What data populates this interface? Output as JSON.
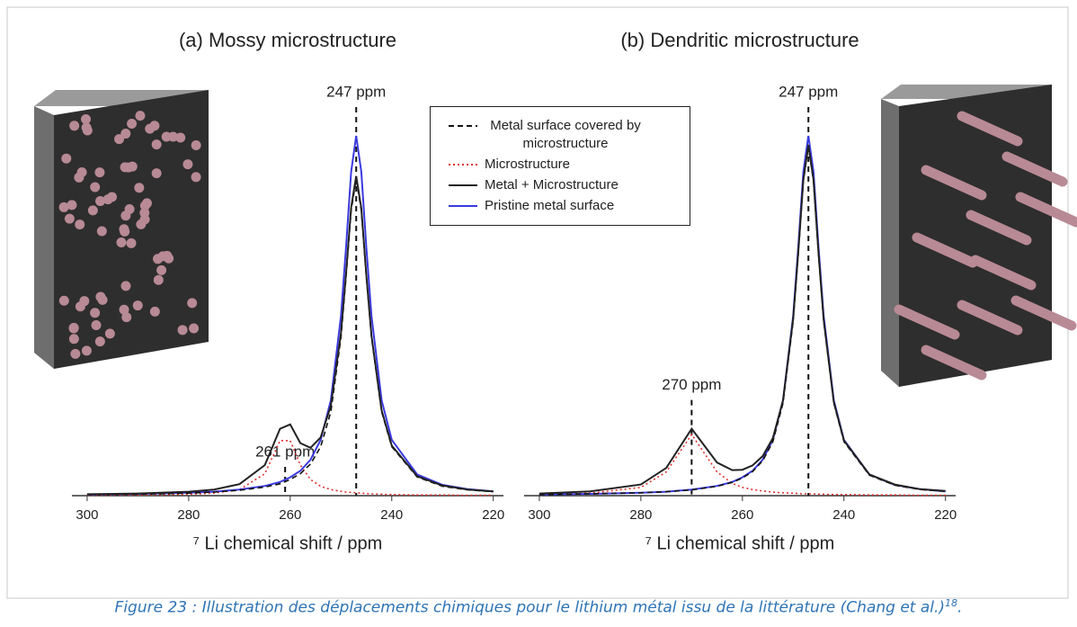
{
  "chart_data": [
    {
      "type": "line",
      "title": "(a) Mossy microstructure",
      "xlabel": "⁷ Li chemical shift / ppm",
      "xlim": [
        303,
        218
      ],
      "xticks": [
        300,
        280,
        260,
        240,
        220
      ],
      "ylim": [
        0,
        1.05
      ],
      "legend": "right",
      "x": [
        300,
        290,
        280,
        275,
        270,
        265,
        262,
        260,
        258,
        256,
        254,
        252,
        250,
        249,
        248,
        247,
        246,
        245,
        244,
        242,
        240,
        235,
        230,
        225,
        220
      ],
      "series": [
        {
          "name": "Metal surface covered by microstructure",
          "color": "#111111",
          "style": "dashed",
          "values": [
            0.003,
            0.004,
            0.007,
            0.01,
            0.015,
            0.024,
            0.033,
            0.045,
            0.061,
            0.088,
            0.136,
            0.233,
            0.44,
            0.607,
            0.792,
            0.88,
            0.792,
            0.607,
            0.44,
            0.233,
            0.136,
            0.052,
            0.026,
            0.016,
            0.011
          ]
        },
        {
          "name": "Microstructure",
          "color": "#e03030",
          "style": "dotted",
          "values": [
            0.001,
            0.002,
            0.004,
            0.007,
            0.017,
            0.061,
            0.153,
            0.153,
            0.085,
            0.045,
            0.026,
            0.017,
            0.012,
            0.01,
            0.009,
            0.008,
            0.007,
            0.006,
            0.005,
            0.004,
            0.003,
            0.002,
            0.002,
            0.001,
            0.001
          ]
        },
        {
          "name": "Metal + Microstructure",
          "color": "#222222",
          "style": "solid",
          "values": [
            0.004,
            0.006,
            0.011,
            0.017,
            0.032,
            0.085,
            0.186,
            0.198,
            0.146,
            0.133,
            0.162,
            0.25,
            0.452,
            0.617,
            0.801,
            0.888,
            0.799,
            0.613,
            0.445,
            0.237,
            0.139,
            0.054,
            0.028,
            0.017,
            0.012
          ]
        },
        {
          "name": "Pristine metal surface",
          "color": "#3a3adf",
          "style": "solid",
          "values": [
            0.003,
            0.005,
            0.008,
            0.011,
            0.017,
            0.027,
            0.038,
            0.051,
            0.069,
            0.1,
            0.155,
            0.265,
            0.5,
            0.69,
            0.9,
            1.0,
            0.9,
            0.69,
            0.5,
            0.265,
            0.155,
            0.059,
            0.03,
            0.018,
            0.012
          ]
        }
      ],
      "annotations": [
        {
          "text": "247 ppm",
          "x": 247
        },
        {
          "text": "261 ppm",
          "x": 261
        }
      ]
    },
    {
      "type": "line",
      "title": "(b) Dendritic microstructure",
      "xlabel": "⁷ Li chemical shift / ppm",
      "xlim": [
        303,
        218
      ],
      "xticks": [
        300,
        280,
        260,
        240,
        220
      ],
      "ylim": [
        0,
        1.05
      ],
      "x": [
        300,
        290,
        280,
        275,
        270,
        265,
        262,
        260,
        258,
        256,
        254,
        252,
        250,
        249,
        248,
        247,
        246,
        245,
        244,
        242,
        240,
        235,
        230,
        225,
        220
      ],
      "series": [
        {
          "color": "#111111",
          "style": "dashed",
          "values": [
            0.003,
            0.005,
            0.008,
            0.011,
            0.016,
            0.026,
            0.037,
            0.049,
            0.067,
            0.097,
            0.15,
            0.257,
            0.485,
            0.669,
            0.873,
            0.97,
            0.873,
            0.669,
            0.485,
            0.257,
            0.15,
            0.057,
            0.029,
            0.017,
            0.012
          ]
        },
        {
          "color": "#e03030",
          "style": "dotted",
          "values": [
            0.003,
            0.007,
            0.023,
            0.066,
            0.17,
            0.066,
            0.034,
            0.023,
            0.017,
            0.013,
            0.01,
            0.008,
            0.007,
            0.006,
            0.005,
            0.005,
            0.005,
            0.004,
            0.004,
            0.003,
            0.003,
            0.002,
            0.002,
            0.001,
            0.001
          ]
        },
        {
          "color": "#222222",
          "style": "solid",
          "values": [
            0.006,
            0.012,
            0.031,
            0.077,
            0.186,
            0.092,
            0.071,
            0.072,
            0.084,
            0.11,
            0.16,
            0.265,
            0.492,
            0.675,
            0.878,
            0.975,
            0.878,
            0.673,
            0.489,
            0.26,
            0.153,
            0.059,
            0.031,
            0.018,
            0.013
          ]
        },
        {
          "color": "#3a3adf",
          "style": "solid",
          "values": [
            0.003,
            0.005,
            0.008,
            0.011,
            0.017,
            0.027,
            0.038,
            0.051,
            0.069,
            0.1,
            0.155,
            0.265,
            0.5,
            0.69,
            0.9,
            1.0,
            0.9,
            0.69,
            0.5,
            0.265,
            0.155,
            0.059,
            0.03,
            0.018,
            0.012
          ]
        }
      ],
      "annotations": [
        {
          "text": "247 ppm",
          "x": 247
        },
        {
          "text": "270 ppm",
          "x": 270
        }
      ]
    }
  ],
  "caption": {
    "text": "Figure 23 : Illustration des déplacements chimiques pour le lithium métal issu de la littérature (Chang et al.)",
    "superscript": "18",
    "suffix": "."
  }
}
